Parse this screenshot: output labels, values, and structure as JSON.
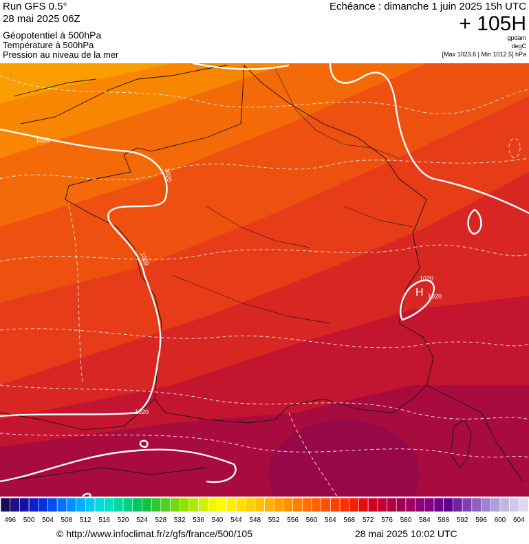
{
  "header": {
    "run": "Run GFS 0.5°",
    "date": "28 mai 2025 06Z",
    "echeance": "Echéance : dimanche 1 juin 2025 15h UTC",
    "term": "+ 105H",
    "layers": [
      "Géopotentiel à 500hPa",
      "Température à 500hPa",
      "Pression au niveau de la mer"
    ],
    "units": [
      "gpdam",
      "degC"
    ],
    "extremes": "[Max 1023.6 | Min 1012.5] hPa"
  },
  "map": {
    "labels": [
      "1020",
      "1020",
      "1020",
      "1020",
      "1020",
      "1020",
      "H"
    ]
  },
  "legend": {
    "labels": [
      496,
      500,
      504,
      508,
      512,
      516,
      520,
      524,
      528,
      532,
      536,
      540,
      544,
      548,
      552,
      556,
      560,
      564,
      568,
      572,
      576,
      580,
      584,
      588,
      592,
      596,
      600,
      604
    ],
    "colors": [
      "#1a0a5a",
      "#200f80",
      "#1510a8",
      "#0a20c8",
      "#0030e0",
      "#0050f0",
      "#0070ff",
      "#0090ff",
      "#00b0ff",
      "#00c8f0",
      "#00dcdc",
      "#00e0c0",
      "#00d8a0",
      "#00d080",
      "#00c860",
      "#10c040",
      "#30c830",
      "#50d020",
      "#70d810",
      "#90e000",
      "#b0e800",
      "#d0f000",
      "#f0f800",
      "#ffff00",
      "#fff000",
      "#ffe000",
      "#ffd000",
      "#ffc000",
      "#ffb000",
      "#ffa000",
      "#ff9000",
      "#ff8000",
      "#ff7000",
      "#ff6000",
      "#ff5000",
      "#ff4000",
      "#ff3000",
      "#f02000",
      "#e01010",
      "#d00020",
      "#c00030",
      "#b00040",
      "#a00050",
      "#a00060",
      "#900070",
      "#800080",
      "#700088",
      "#600090",
      "#7020a0",
      "#8040b0",
      "#9060c0",
      "#a080d0",
      "#b0a0d8",
      "#c0b8e0",
      "#d0c8e8",
      "#e0d8f0"
    ]
  },
  "footer": {
    "url": "© http://www.infoclimat.fr/z/gfs/france/500/105",
    "timestamp": "28 mai 2025 10:02 UTC"
  }
}
